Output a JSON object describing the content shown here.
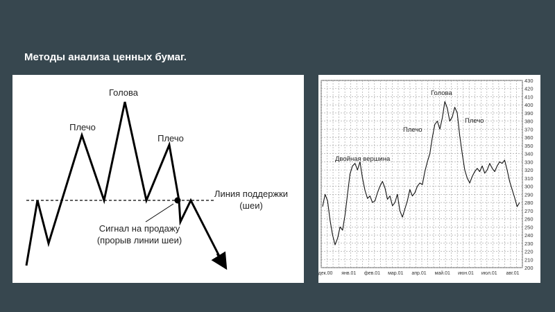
{
  "slide": {
    "title": "Методы анализа ценных бумаг."
  },
  "diagram": {
    "head_label": "Голова",
    "shoulder_left_label": "Плечо",
    "shoulder_right_label": "Плечо",
    "neckline_label_line1": "Линия поддержки",
    "neckline_label_line2": "(шеи)",
    "signal_label_line1": "Сигнал на продажу",
    "signal_label_line2": "(прорыв линии шеи)"
  },
  "chart_data": {
    "type": "line",
    "title": "",
    "xlabel": "",
    "ylabel": "",
    "ylim": [
      200,
      430
    ],
    "y_ticks": [
      200,
      210,
      220,
      230,
      240,
      250,
      260,
      270,
      280,
      290,
      300,
      310,
      320,
      330,
      340,
      350,
      360,
      370,
      380,
      390,
      400,
      410,
      420,
      430
    ],
    "x_ticks": [
      "дек.00",
      "янв.01",
      "фев.01",
      "мар.01",
      "апр.01",
      "май.01",
      "июн.01",
      "июл.01",
      "авг.01"
    ],
    "grid": true,
    "annotations": {
      "double_top": "Двойная вершина",
      "shoulder_left": "Плечо",
      "head": "Голова",
      "shoulder_right": "Плечо"
    },
    "series": [
      {
        "values": [
          275,
          290,
          282,
          258,
          240,
          228,
          236,
          250,
          246,
          265,
          290,
          315,
          325,
          328,
          320,
          330,
          310,
          295,
          285,
          288,
          280,
          282,
          292,
          300,
          306,
          298,
          284,
          288,
          276,
          280,
          290,
          270,
          262,
          272,
          282,
          296,
          288,
          292,
          300,
          304,
          302,
          318,
          330,
          340,
          360,
          376,
          380,
          370,
          384,
          404,
          396,
          380,
          385,
          397,
          390,
          362,
          340,
          320,
          310,
          304,
          312,
          318,
          322,
          318,
          325,
          316,
          320,
          328,
          322,
          318,
          325,
          330,
          328,
          332,
          320,
          306,
          296,
          286,
          275,
          280
        ]
      }
    ]
  }
}
